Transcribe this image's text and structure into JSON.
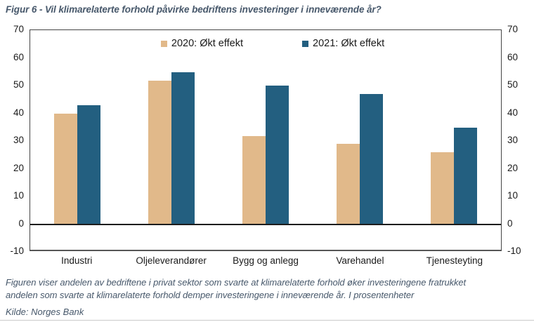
{
  "figure": {
    "title": "Figur 6 - Vil klimarelaterte forhold påvirke bedriftens investeringer i inneværende år?",
    "footnote_lines": [
      "Figuren viser andelen av bedriftene i privat sektor som svarte at klimarelaterte forhold øker investeringene fratrukket",
      "andelen som svarte at klimarelaterte forhold demper investeringene i inneværende år. I prosentenheter"
    ],
    "source": "Kilde: Norges Bank"
  },
  "chart_data": {
    "type": "bar",
    "title": "Figur 6 - Vil klimarelaterte forhold påvirke bedriftens investeringer i inneværende år?",
    "categories": [
      "Industri",
      "Oljeleverandører",
      "Bygg og anlegg",
      "Varehandel",
      "Tjenesteyting"
    ],
    "series": [
      {
        "name": "2020: Økt effekt",
        "color": "#E1B98A",
        "values": [
          40,
          52,
          32,
          29,
          26
        ]
      },
      {
        "name": "2021: Økt effekt",
        "color": "#235F80",
        "values": [
          43,
          55,
          50,
          47,
          35
        ]
      }
    ],
    "xlabel": "",
    "ylabel": "",
    "ylim": [
      -10,
      70
    ],
    "yticks": [
      70,
      60,
      50,
      40,
      30,
      20,
      10,
      0,
      -10
    ],
    "grid": false,
    "legend_position": "top-center",
    "units": "prosentenheter"
  }
}
